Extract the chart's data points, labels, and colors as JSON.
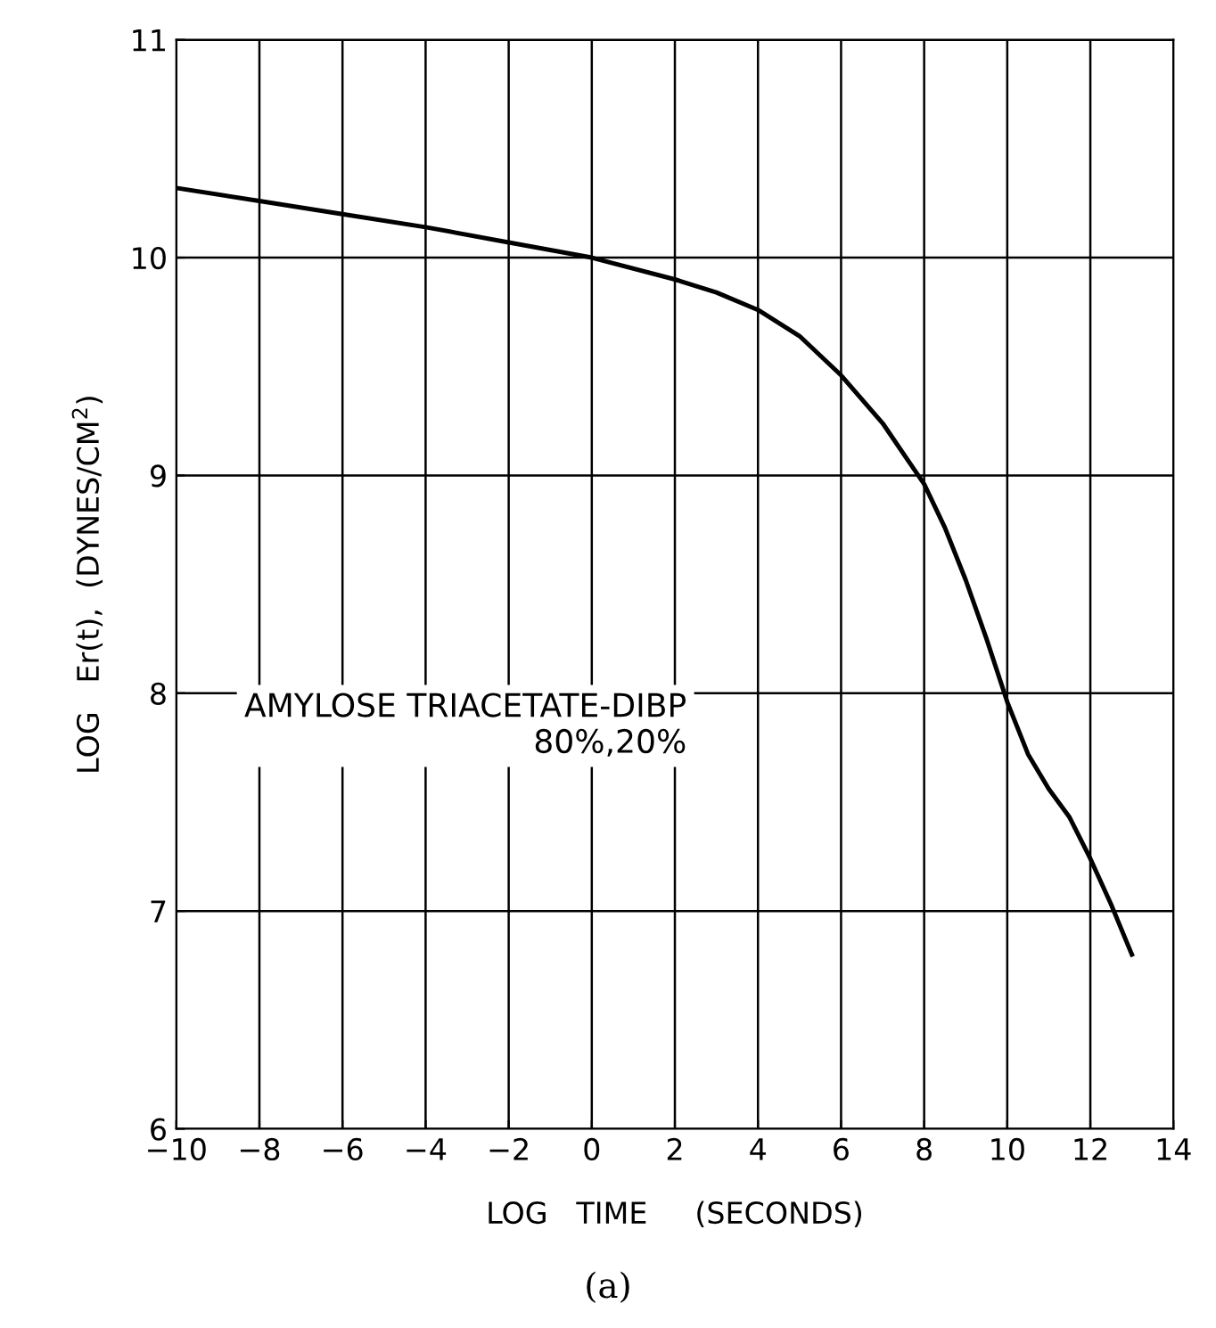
{
  "chart_data": {
    "type": "line",
    "xlabel": "LOG   TIME     (SECONDS)",
    "ylabel": "LOG   Er(t),  (DYNES/CM$^{2}$)",
    "x": [
      -10,
      -8,
      -6,
      -4,
      -2,
      0,
      2,
      3,
      4,
      5,
      6,
      7,
      8,
      8.5,
      9,
      9.5,
      10,
      10.5,
      11,
      11.5,
      12,
      12.5,
      13
    ],
    "series": [
      {
        "color": "#000000",
        "values": [
          10.32,
          10.26,
          10.2,
          10.14,
          10.07,
          10.0,
          9.9,
          9.84,
          9.76,
          9.64,
          9.46,
          9.24,
          8.96,
          8.76,
          8.52,
          8.25,
          7.96,
          7.72,
          7.56,
          7.43,
          7.24,
          7.03,
          6.8
        ]
      }
    ],
    "xlim": [
      -10,
      14
    ],
    "ylim": [
      6,
      11
    ],
    "xticks": [
      -10,
      -8,
      -6,
      -4,
      -2,
      0,
      2,
      4,
      6,
      8,
      10,
      12,
      14
    ],
    "yticks": [
      6,
      7,
      8,
      9,
      10,
      11
    ],
    "grid": true,
    "marker": "none",
    "line_style": "solid",
    "annotations": [
      "AMYLOSE TRIACETATE-DIBP\n80%,20%",
      "(a)"
    ]
  }
}
